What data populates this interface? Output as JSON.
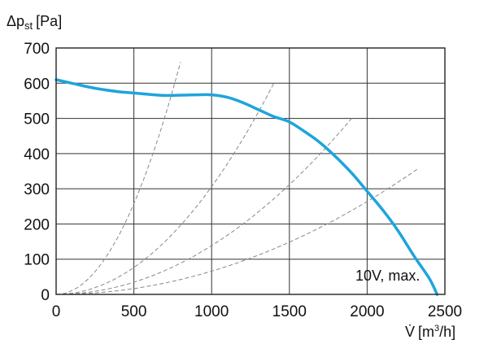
{
  "chart_data": {
    "type": "line",
    "xlabel": "V̇ [m³/h]",
    "ylabel": "Δpst [Pa]",
    "ylabel_parts": {
      "main": "Δp",
      "sub": "st",
      "unit": "[Pa]"
    },
    "xlabel_parts": {
      "main": "V̇",
      "unit_pre": "[m",
      "sup": "3",
      "unit_post": "/h]"
    },
    "xlim": [
      0,
      2500
    ],
    "ylim": [
      0,
      700
    ],
    "xticks": [
      0,
      500,
      1000,
      1500,
      2000,
      2500
    ],
    "yticks": [
      0,
      100,
      200,
      300,
      400,
      500,
      600,
      700
    ],
    "grid": true,
    "annotation": "10V, max.",
    "fan_curve": {
      "color": "#1ea4dc",
      "points": [
        [
          0,
          610
        ],
        [
          100,
          600
        ],
        [
          200,
          590
        ],
        [
          300,
          582
        ],
        [
          400,
          576
        ],
        [
          500,
          572
        ],
        [
          600,
          568
        ],
        [
          700,
          565
        ],
        [
          800,
          566
        ],
        [
          900,
          567
        ],
        [
          1000,
          567
        ],
        [
          1100,
          560
        ],
        [
          1200,
          545
        ],
        [
          1300,
          525
        ],
        [
          1400,
          505
        ],
        [
          1500,
          490
        ],
        [
          1600,
          462
        ],
        [
          1700,
          430
        ],
        [
          1800,
          390
        ],
        [
          1900,
          345
        ],
        [
          2000,
          293
        ],
        [
          2100,
          240
        ],
        [
          2200,
          180
        ],
        [
          2300,
          110
        ],
        [
          2400,
          45
        ],
        [
          2450,
          0
        ]
      ]
    },
    "system_curves": {
      "color": "#888888",
      "lines": [
        {
          "x_end": 800,
          "y_end": 660
        },
        {
          "x_end": 1400,
          "y_end": 600
        },
        {
          "x_end": 1900,
          "y_end": 500
        },
        {
          "x_end": 2330,
          "y_end": 358
        }
      ]
    }
  }
}
